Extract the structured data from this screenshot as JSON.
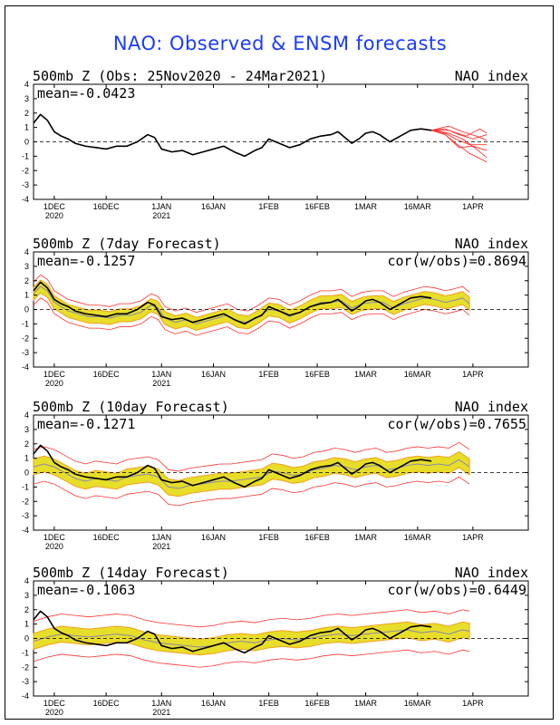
{
  "title": "NAO: Observed & ENSM forecasts",
  "colors": {
    "title": "#1a3cff",
    "observed": "#000000",
    "members": "#ff3030",
    "spread": "#e6dc1e",
    "spread_alt": "#f2a020",
    "ens_mean": "#8888aa"
  },
  "panels_text": [
    {
      "heading": "500mb Z (Obs: 25Nov2020 - 24Mar2021)",
      "right": "NAO index",
      "stat1": "mean=-0.0423",
      "stat2": ""
    },
    {
      "heading": "500mb Z (7day Forecast)",
      "right": "NAO index",
      "stat1": "mean=-0.1257",
      "stat2": "cor(w/obs)=0.8694"
    },
    {
      "heading": "500mb Z (10day Forecast)",
      "right": "NAO index",
      "stat1": "mean=-0.1271",
      "stat2": "cor(w/obs)=0.7655"
    },
    {
      "heading": "500mb Z (14day Forecast)",
      "right": "NAO index",
      "stat1": "mean=-0.1063",
      "stat2": "cor(w/obs)=0.6449"
    }
  ],
  "chart_data": [
    {
      "type": "line",
      "panel": "observed",
      "ylim": [
        -4,
        4
      ],
      "yticks": [
        4,
        3,
        2,
        1,
        0,
        -1,
        -2,
        -3,
        -4
      ],
      "xlim": [
        0,
        143
      ],
      "xtick_days": [
        6,
        21,
        37,
        52,
        68,
        82,
        96,
        111,
        127
      ],
      "xtick_labels": [
        "1DEC",
        "16DEC",
        "1JAN",
        "16JAN",
        "1FEB",
        "16FEB",
        "1MAR",
        "16MAR",
        "1APR"
      ],
      "xtick_years": [
        "2020",
        "",
        "2021",
        "",
        "",
        "",
        "",
        "",
        ""
      ],
      "observed": [
        [
          0,
          1.3
        ],
        [
          2,
          1.9
        ],
        [
          4,
          1.5
        ],
        [
          6,
          0.7
        ],
        [
          8,
          0.4
        ],
        [
          10,
          0.2
        ],
        [
          12,
          -0.1
        ],
        [
          15,
          -0.3
        ],
        [
          18,
          -0.4
        ],
        [
          21,
          -0.5
        ],
        [
          24,
          -0.3
        ],
        [
          27,
          -0.3
        ],
        [
          30,
          0.0
        ],
        [
          33,
          0.5
        ],
        [
          35,
          0.3
        ],
        [
          37,
          -0.5
        ],
        [
          40,
          -0.7
        ],
        [
          43,
          -0.6
        ],
        [
          46,
          -0.9
        ],
        [
          49,
          -0.7
        ],
        [
          52,
          -0.5
        ],
        [
          55,
          -0.3
        ],
        [
          58,
          -0.7
        ],
        [
          61,
          -1.0
        ],
        [
          64,
          -0.6
        ],
        [
          66,
          -0.4
        ],
        [
          68,
          0.2
        ],
        [
          71,
          -0.1
        ],
        [
          74,
          -0.4
        ],
        [
          77,
          -0.2
        ],
        [
          80,
          0.2
        ],
        [
          83,
          0.4
        ],
        [
          86,
          0.5
        ],
        [
          88,
          0.7
        ],
        [
          90,
          0.3
        ],
        [
          92,
          -0.1
        ],
        [
          94,
          0.2
        ],
        [
          96,
          0.6
        ],
        [
          98,
          0.7
        ],
        [
          100,
          0.5
        ],
        [
          103,
          0.0
        ],
        [
          106,
          0.4
        ],
        [
          109,
          0.8
        ],
        [
          112,
          0.9
        ],
        [
          115,
          0.8
        ]
      ],
      "member_forecasts": [
        [
          [
            115,
            0.8
          ],
          [
            120,
            0.6
          ],
          [
            124,
            0.2
          ],
          [
            128,
            -0.5
          ],
          [
            131,
            -1.1
          ]
        ],
        [
          [
            115,
            0.8
          ],
          [
            119,
            0.9
          ],
          [
            123,
            0.5
          ],
          [
            127,
            0.2
          ],
          [
            131,
            0.5
          ]
        ],
        [
          [
            115,
            0.8
          ],
          [
            118,
            0.7
          ],
          [
            122,
            -0.1
          ],
          [
            126,
            -0.8
          ],
          [
            131,
            -1.4
          ]
        ],
        [
          [
            115,
            0.8
          ],
          [
            120,
            1.1
          ],
          [
            124,
            0.7
          ],
          [
            128,
            0.4
          ],
          [
            131,
            0.1
          ]
        ],
        [
          [
            115,
            0.8
          ],
          [
            119,
            0.5
          ],
          [
            123,
            -0.4
          ],
          [
            127,
            -0.3
          ],
          [
            131,
            -0.6
          ]
        ],
        [
          [
            115,
            0.8
          ],
          [
            120,
            0.8
          ],
          [
            125,
            0.4
          ],
          [
            129,
            0.9
          ],
          [
            131,
            0.6
          ]
        ],
        [
          [
            115,
            0.8
          ],
          [
            119,
            0.6
          ],
          [
            122,
            0.2
          ],
          [
            126,
            -0.2
          ],
          [
            131,
            -0.2
          ]
        ]
      ]
    },
    {
      "type": "line",
      "panel": "7day forecast",
      "ylim": [
        -4,
        4
      ],
      "observed": [
        [
          0,
          1.3
        ],
        [
          2,
          1.9
        ],
        [
          4,
          1.5
        ],
        [
          6,
          0.7
        ],
        [
          8,
          0.4
        ],
        [
          10,
          0.2
        ],
        [
          12,
          -0.1
        ],
        [
          15,
          -0.3
        ],
        [
          18,
          -0.4
        ],
        [
          21,
          -0.5
        ],
        [
          24,
          -0.3
        ],
        [
          27,
          -0.3
        ],
        [
          30,
          0.0
        ],
        [
          33,
          0.5
        ],
        [
          35,
          0.3
        ],
        [
          37,
          -0.5
        ],
        [
          40,
          -0.7
        ],
        [
          43,
          -0.6
        ],
        [
          46,
          -0.9
        ],
        [
          49,
          -0.7
        ],
        [
          52,
          -0.5
        ],
        [
          55,
          -0.3
        ],
        [
          58,
          -0.7
        ],
        [
          61,
          -1.0
        ],
        [
          64,
          -0.6
        ],
        [
          66,
          -0.4
        ],
        [
          68,
          0.2
        ],
        [
          71,
          -0.1
        ],
        [
          74,
          -0.4
        ],
        [
          77,
          -0.2
        ],
        [
          80,
          0.2
        ],
        [
          83,
          0.4
        ],
        [
          86,
          0.5
        ],
        [
          88,
          0.7
        ],
        [
          90,
          0.3
        ],
        [
          92,
          -0.1
        ],
        [
          94,
          0.2
        ],
        [
          96,
          0.6
        ],
        [
          98,
          0.7
        ],
        [
          100,
          0.5
        ],
        [
          103,
          0.0
        ],
        [
          106,
          0.4
        ],
        [
          109,
          0.8
        ],
        [
          112,
          0.9
        ],
        [
          115,
          0.8
        ]
      ],
      "ens_mean": [
        [
          0,
          1.1
        ],
        [
          2,
          1.6
        ],
        [
          4,
          1.3
        ],
        [
          6,
          0.5
        ],
        [
          8,
          0.2
        ],
        [
          10,
          -0.1
        ],
        [
          13,
          -0.3
        ],
        [
          16,
          -0.5
        ],
        [
          19,
          -0.5
        ],
        [
          22,
          -0.6
        ],
        [
          25,
          -0.4
        ],
        [
          28,
          -0.4
        ],
        [
          31,
          -0.2
        ],
        [
          34,
          0.3
        ],
        [
          36,
          0.1
        ],
        [
          38,
          -0.6
        ],
        [
          41,
          -0.9
        ],
        [
          44,
          -0.7
        ],
        [
          47,
          -1.0
        ],
        [
          50,
          -0.8
        ],
        [
          53,
          -0.6
        ],
        [
          56,
          -0.4
        ],
        [
          59,
          -0.8
        ],
        [
          62,
          -0.9
        ],
        [
          65,
          -0.5
        ],
        [
          68,
          0.0
        ],
        [
          71,
          -0.1
        ],
        [
          74,
          -0.5
        ],
        [
          77,
          -0.2
        ],
        [
          80,
          0.2
        ],
        [
          83,
          0.5
        ],
        [
          86,
          0.5
        ],
        [
          89,
          0.6
        ],
        [
          92,
          0.1
        ],
        [
          95,
          0.4
        ],
        [
          98,
          0.5
        ],
        [
          101,
          0.5
        ],
        [
          104,
          0.1
        ],
        [
          107,
          0.4
        ],
        [
          110,
          0.6
        ],
        [
          113,
          0.8
        ],
        [
          116,
          0.7
        ],
        [
          119,
          0.5
        ],
        [
          121,
          0.6
        ],
        [
          124,
          0.8
        ],
        [
          126,
          0.4
        ]
      ],
      "spread": 0.45,
      "range": 0.8
    },
    {
      "type": "line",
      "panel": "10day forecast",
      "ylim": [
        -4,
        4
      ],
      "observed": [
        [
          0,
          1.3
        ],
        [
          2,
          1.9
        ],
        [
          4,
          1.5
        ],
        [
          6,
          0.7
        ],
        [
          8,
          0.4
        ],
        [
          10,
          0.2
        ],
        [
          12,
          -0.1
        ],
        [
          15,
          -0.3
        ],
        [
          18,
          -0.4
        ],
        [
          21,
          -0.5
        ],
        [
          24,
          -0.3
        ],
        [
          27,
          -0.3
        ],
        [
          30,
          0.0
        ],
        [
          33,
          0.5
        ],
        [
          35,
          0.3
        ],
        [
          37,
          -0.5
        ],
        [
          40,
          -0.7
        ],
        [
          43,
          -0.6
        ],
        [
          46,
          -0.9
        ],
        [
          49,
          -0.7
        ],
        [
          52,
          -0.5
        ],
        [
          55,
          -0.3
        ],
        [
          58,
          -0.7
        ],
        [
          61,
          -1.0
        ],
        [
          64,
          -0.6
        ],
        [
          66,
          -0.4
        ],
        [
          68,
          0.2
        ],
        [
          71,
          -0.1
        ],
        [
          74,
          -0.4
        ],
        [
          77,
          -0.2
        ],
        [
          80,
          0.2
        ],
        [
          83,
          0.4
        ],
        [
          86,
          0.5
        ],
        [
          88,
          0.7
        ],
        [
          90,
          0.3
        ],
        [
          92,
          -0.1
        ],
        [
          94,
          0.2
        ],
        [
          96,
          0.6
        ],
        [
          98,
          0.7
        ],
        [
          100,
          0.5
        ],
        [
          103,
          0.0
        ],
        [
          106,
          0.4
        ],
        [
          109,
          0.8
        ],
        [
          112,
          0.9
        ],
        [
          115,
          0.8
        ]
      ],
      "ens_mean": [
        [
          0,
          0.4
        ],
        [
          3,
          0.6
        ],
        [
          6,
          0.4
        ],
        [
          9,
          0.0
        ],
        [
          12,
          -0.4
        ],
        [
          15,
          -0.6
        ],
        [
          18,
          -0.4
        ],
        [
          21,
          -0.5
        ],
        [
          24,
          -0.6
        ],
        [
          27,
          -0.3
        ],
        [
          30,
          -0.2
        ],
        [
          33,
          -0.1
        ],
        [
          36,
          -0.3
        ],
        [
          39,
          -1.0
        ],
        [
          42,
          -1.1
        ],
        [
          45,
          -0.9
        ],
        [
          48,
          -0.8
        ],
        [
          51,
          -0.7
        ],
        [
          54,
          -0.6
        ],
        [
          57,
          -0.6
        ],
        [
          60,
          -0.5
        ],
        [
          63,
          -0.4
        ],
        [
          66,
          -0.3
        ],
        [
          69,
          0.1
        ],
        [
          72,
          0.0
        ],
        [
          75,
          -0.2
        ],
        [
          78,
          -0.1
        ],
        [
          81,
          0.2
        ],
        [
          84,
          0.3
        ],
        [
          87,
          0.5
        ],
        [
          90,
          0.4
        ],
        [
          93,
          0.2
        ],
        [
          96,
          0.4
        ],
        [
          99,
          0.5
        ],
        [
          102,
          0.2
        ],
        [
          105,
          0.3
        ],
        [
          108,
          0.5
        ],
        [
          111,
          0.6
        ],
        [
          114,
          0.5
        ],
        [
          117,
          0.6
        ],
        [
          120,
          0.5
        ],
        [
          123,
          0.9
        ],
        [
          126,
          0.4
        ]
      ],
      "spread": 0.55,
      "range": 1.2
    },
    {
      "type": "line",
      "panel": "14day forecast",
      "ylim": [
        -4,
        4
      ],
      "observed": [
        [
          0,
          1.3
        ],
        [
          2,
          1.9
        ],
        [
          4,
          1.5
        ],
        [
          6,
          0.7
        ],
        [
          8,
          0.4
        ],
        [
          10,
          0.2
        ],
        [
          12,
          -0.1
        ],
        [
          15,
          -0.3
        ],
        [
          18,
          -0.4
        ],
        [
          21,
          -0.5
        ],
        [
          24,
          -0.3
        ],
        [
          27,
          -0.3
        ],
        [
          30,
          0.0
        ],
        [
          33,
          0.5
        ],
        [
          35,
          0.3
        ],
        [
          37,
          -0.5
        ],
        [
          40,
          -0.7
        ],
        [
          43,
          -0.6
        ],
        [
          46,
          -0.9
        ],
        [
          49,
          -0.7
        ],
        [
          52,
          -0.5
        ],
        [
          55,
          -0.3
        ],
        [
          58,
          -0.7
        ],
        [
          61,
          -1.0
        ],
        [
          64,
          -0.6
        ],
        [
          66,
          -0.4
        ],
        [
          68,
          0.2
        ],
        [
          71,
          -0.1
        ],
        [
          74,
          -0.4
        ],
        [
          77,
          -0.2
        ],
        [
          80,
          0.2
        ],
        [
          83,
          0.4
        ],
        [
          86,
          0.5
        ],
        [
          88,
          0.7
        ],
        [
          90,
          0.3
        ],
        [
          92,
          -0.1
        ],
        [
          94,
          0.2
        ],
        [
          96,
          0.6
        ],
        [
          98,
          0.7
        ],
        [
          100,
          0.5
        ],
        [
          103,
          0.0
        ],
        [
          106,
          0.4
        ],
        [
          109,
          0.8
        ],
        [
          112,
          0.9
        ],
        [
          115,
          0.8
        ]
      ],
      "ens_mean": [
        [
          0,
          -0.2
        ],
        [
          4,
          0.1
        ],
        [
          8,
          0.3
        ],
        [
          12,
          0.2
        ],
        [
          16,
          0.1
        ],
        [
          20,
          0.2
        ],
        [
          24,
          0.3
        ],
        [
          28,
          0.2
        ],
        [
          32,
          -0.1
        ],
        [
          36,
          -0.3
        ],
        [
          40,
          -0.4
        ],
        [
          44,
          -0.5
        ],
        [
          48,
          -0.6
        ],
        [
          52,
          -0.5
        ],
        [
          56,
          -0.3
        ],
        [
          60,
          -0.2
        ],
        [
          64,
          -0.3
        ],
        [
          68,
          -0.1
        ],
        [
          72,
          0.0
        ],
        [
          76,
          -0.1
        ],
        [
          80,
          0.0
        ],
        [
          84,
          0.2
        ],
        [
          88,
          0.3
        ],
        [
          92,
          0.2
        ],
        [
          96,
          0.3
        ],
        [
          100,
          0.4
        ],
        [
          104,
          0.5
        ],
        [
          108,
          0.6
        ],
        [
          112,
          0.4
        ],
        [
          116,
          0.5
        ],
        [
          120,
          0.3
        ],
        [
          124,
          0.6
        ],
        [
          126,
          0.5
        ]
      ],
      "spread": 0.55,
      "range": 1.4
    }
  ]
}
